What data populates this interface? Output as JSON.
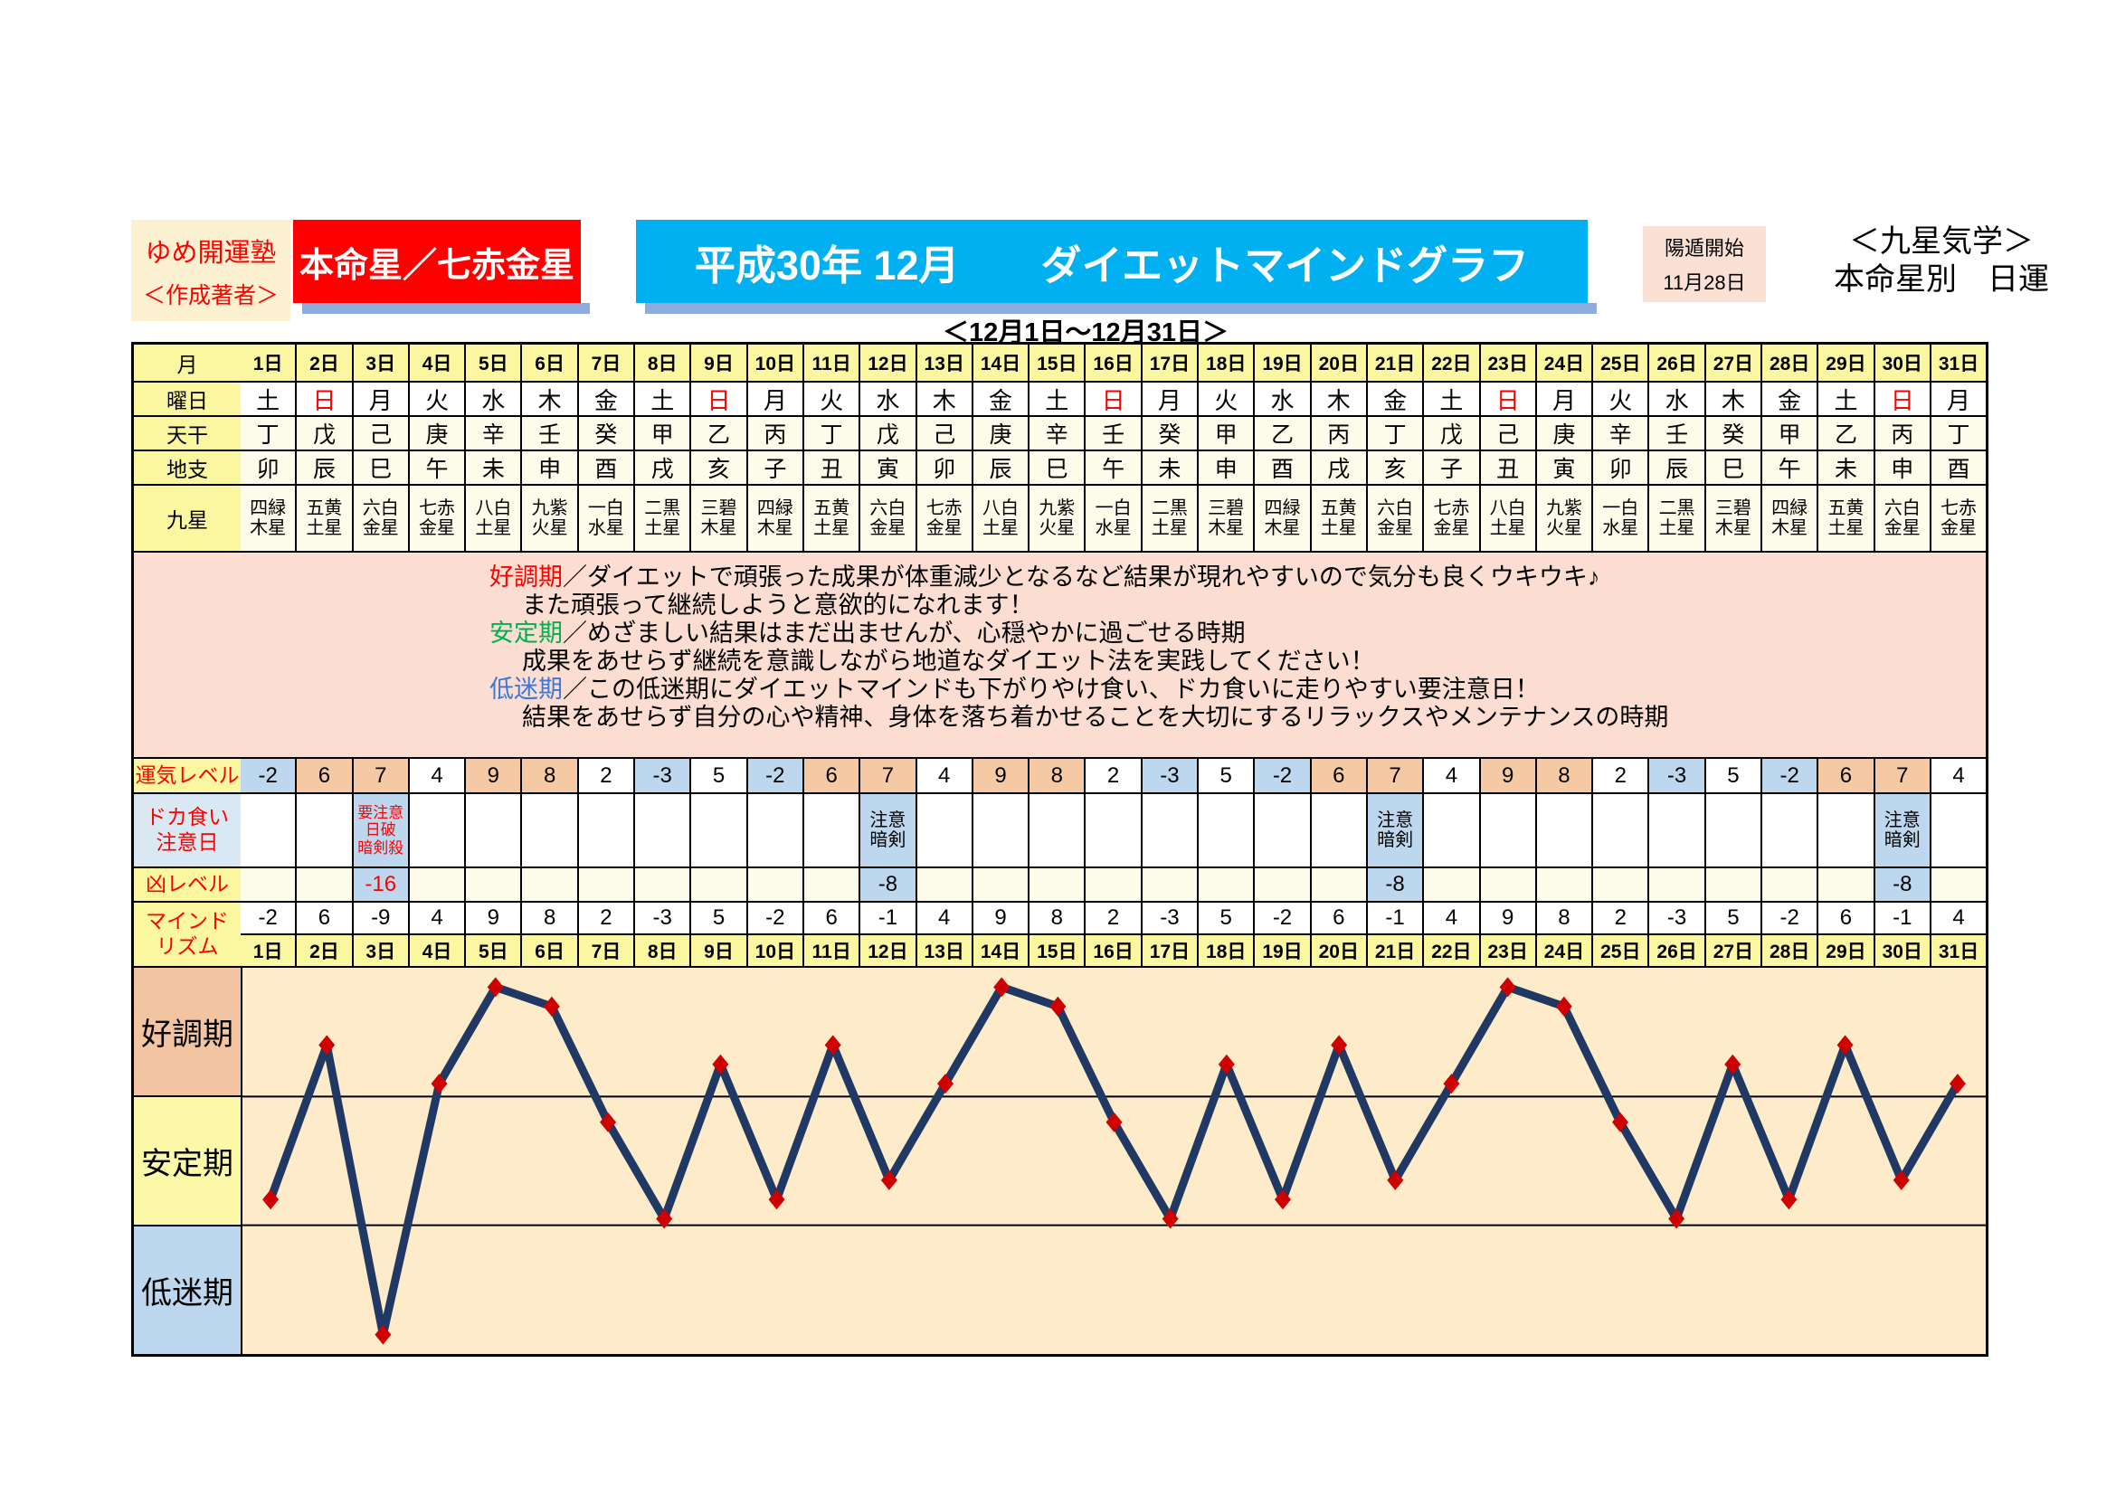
{
  "header": {
    "brand_line1": "ゆめ開運塾",
    "brand_line2": "＜作成著者＞",
    "honmeisei": "本命星／七赤金星",
    "title": "平成30年 12月　　ダイエットマインドグラフ",
    "youton_label": "陽遁開始",
    "youton_date": "11月28日",
    "right_line1": "＜九星気学＞",
    "right_line2": "本命星別　日運",
    "subtitle": "＜12月1日～12月31日＞"
  },
  "colors": {
    "title_bar": "#00B0F0",
    "honmei_bar": "#FF0000",
    "good_band": "#F2C4A2",
    "stable_band": "#FBF9A8",
    "low_band": "#BDD7EE",
    "plot_bg": "#FDEBC9",
    "line": "#1F3864",
    "marker": "#CE0000",
    "positive_cell": "#F5C9A3",
    "negative_cell": "#BDD7EE"
  },
  "calendar": {
    "label_month": "月",
    "label_weekday": "曜日",
    "label_tenkan": "天干",
    "label_chishi": "地支",
    "label_kyusei": "九星",
    "days": [
      "1日",
      "2日",
      "3日",
      "4日",
      "5日",
      "6日",
      "7日",
      "8日",
      "9日",
      "10日",
      "11日",
      "12日",
      "13日",
      "14日",
      "15日",
      "16日",
      "17日",
      "18日",
      "19日",
      "20日",
      "21日",
      "22日",
      "23日",
      "24日",
      "25日",
      "26日",
      "27日",
      "28日",
      "29日",
      "30日",
      "31日"
    ],
    "weekdays": [
      "土",
      "日",
      "月",
      "火",
      "水",
      "木",
      "金",
      "土",
      "日",
      "月",
      "火",
      "水",
      "木",
      "金",
      "土",
      "日",
      "月",
      "火",
      "水",
      "木",
      "金",
      "土",
      "日",
      "月",
      "火",
      "水",
      "木",
      "金",
      "土",
      "日",
      "月"
    ],
    "tenkan": [
      "丁",
      "戊",
      "己",
      "庚",
      "辛",
      "壬",
      "癸",
      "甲",
      "乙",
      "丙",
      "丁",
      "戊",
      "己",
      "庚",
      "辛",
      "壬",
      "癸",
      "甲",
      "乙",
      "丙",
      "丁",
      "戊",
      "己",
      "庚",
      "辛",
      "壬",
      "癸",
      "甲",
      "乙",
      "丙",
      "丁"
    ],
    "chishi": [
      "卯",
      "辰",
      "巳",
      "午",
      "未",
      "申",
      "酉",
      "戌",
      "亥",
      "子",
      "丑",
      "寅",
      "卯",
      "辰",
      "巳",
      "午",
      "未",
      "申",
      "酉",
      "戌",
      "亥",
      "子",
      "丑",
      "寅",
      "卯",
      "辰",
      "巳",
      "午",
      "未",
      "申",
      "酉"
    ],
    "kyusei": [
      "四緑木星",
      "五黄土星",
      "六白金星",
      "七赤金星",
      "八白土星",
      "九紫火星",
      "一白水星",
      "二黒土星",
      "三碧木星",
      "四緑木星",
      "五黄土星",
      "六白金星",
      "七赤金星",
      "八白土星",
      "九紫火星",
      "一白水星",
      "二黒土星",
      "三碧木星",
      "四緑木星",
      "五黄土星",
      "六白金星",
      "七赤金星",
      "八白土星",
      "九紫火星",
      "一白水星",
      "二黒土星",
      "三碧木星",
      "四緑木星",
      "五黄土星",
      "六白金星",
      "七赤金星"
    ]
  },
  "legend": {
    "lines": [
      {
        "lead": "好調期",
        "lead_color": "#FF0000",
        "text": "／ダイエットで頑張った成果が体重減少となるなど結果が現れやすいので気分も良くウキウキ♪",
        "cont": false
      },
      {
        "lead": "",
        "lead_color": "",
        "text": "また頑張って継続しようと意欲的になれます！",
        "cont": true
      },
      {
        "lead": "安定期",
        "lead_color": "#00B050",
        "text": "／めざましい結果はまだ出ませんが、心穏やかに過ごせる時期",
        "cont": false
      },
      {
        "lead": "",
        "lead_color": "",
        "text": "成果をあせらず継続を意識しながら地道なダイエット法を実践してください！",
        "cont": true
      },
      {
        "lead": "低迷期",
        "lead_color": "#3C78D8",
        "text": "／この低迷期にダイエットマインドも下がりやけ食い、ドカ食いに走りやすい要注意日！",
        "cont": false
      },
      {
        "lead": "",
        "lead_color": "",
        "text": "結果をあせらず自分の心や精神、身体を落ち着かせることを大切にするリラックスやメンテナンスの時期",
        "cont": true
      }
    ]
  },
  "levels": {
    "unki_label": "運気レベル",
    "unki": [
      -2,
      6,
      7,
      4,
      9,
      8,
      2,
      -3,
      5,
      -2,
      6,
      7,
      4,
      9,
      8,
      2,
      -3,
      5,
      -2,
      6,
      7,
      4,
      9,
      8,
      2,
      -3,
      5,
      -2,
      6,
      7,
      4
    ],
    "dokagui_label": "ドカ食い\n注意日",
    "dokagui_notes": {
      "3": {
        "text": "要注意\n日破\n暗剣殺",
        "color": "#FF0000"
      },
      "12": {
        "text": "注意\n暗剣",
        "color": "#000000"
      },
      "21": {
        "text": "注意\n暗剣",
        "color": "#000000"
      },
      "30": {
        "text": "注意\n暗剣",
        "color": "#000000"
      }
    },
    "kyou_label": "凶レベル",
    "kyou": {
      "3": {
        "value": "-16",
        "color": "#FF0000"
      },
      "12": {
        "value": "-8",
        "color": "#000000"
      },
      "21": {
        "value": "-8",
        "color": "#000000"
      },
      "30": {
        "value": "-8",
        "color": "#000000"
      }
    },
    "mind_label": "マインド\nリズム"
  },
  "chart_data": {
    "type": "line",
    "title": "ダイエットマインドグラフ",
    "x": [
      "1日",
      "2日",
      "3日",
      "4日",
      "5日",
      "6日",
      "7日",
      "8日",
      "9日",
      "10日",
      "11日",
      "12日",
      "13日",
      "14日",
      "15日",
      "16日",
      "17日",
      "18日",
      "19日",
      "20日",
      "21日",
      "22日",
      "23日",
      "24日",
      "25日",
      "26日",
      "27日",
      "28日",
      "29日",
      "30日",
      "31日"
    ],
    "series": [
      {
        "name": "マインドリズム",
        "values": [
          -2,
          6,
          -9,
          4,
          9,
          8,
          2,
          -3,
          5,
          -2,
          6,
          -1,
          4,
          9,
          8,
          2,
          -3,
          5,
          -2,
          6,
          -1,
          4,
          9,
          8,
          2,
          -3,
          5,
          -2,
          6,
          -1,
          4
        ]
      }
    ],
    "ylim": [
      -10,
      10
    ],
    "grid": false,
    "legend_position": "none",
    "bands": [
      {
        "label": "好調期",
        "range": [
          3.33,
          10
        ],
        "color": "#F2C4A2"
      },
      {
        "label": "安定期",
        "range": [
          -3.33,
          3.33
        ],
        "color": "#FBF9A8"
      },
      {
        "label": "低迷期",
        "range": [
          -10,
          -3.33
        ],
        "color": "#BDD7EE"
      }
    ],
    "line_color": "#1F3864",
    "marker": "diamond",
    "marker_color": "#CE0000"
  }
}
